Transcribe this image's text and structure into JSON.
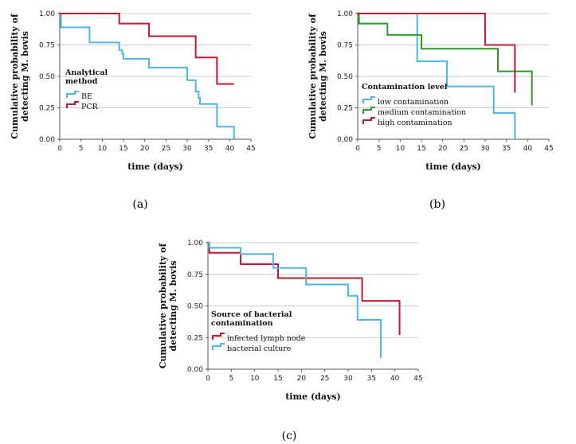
{
  "chart_data": [
    {
      "type": "line",
      "step": true,
      "panel_label": "(a)",
      "xlabel": "time (days)",
      "ylabel_lines": [
        "Cumulative probability of",
        "detecting M. bovis"
      ],
      "xticks": [
        "0",
        "5",
        "10",
        "15",
        "20",
        "25",
        "30",
        "35",
        "40",
        "45"
      ],
      "yticks": [
        "0.00",
        "0.25",
        "0.50",
        "0.75",
        "1.00"
      ],
      "xlim": [
        0,
        45
      ],
      "ylim": [
        0,
        1
      ],
      "legend_title_lines": [
        "Analytical",
        "method"
      ],
      "series": [
        {
          "name": "BE",
          "color": "#4db6e8",
          "x": [
            0,
            0.3,
            7,
            14,
            14.7,
            15,
            21,
            30,
            32,
            32.7,
            33,
            37,
            41
          ],
          "y": [
            1.0,
            0.89,
            0.77,
            0.71,
            0.68,
            0.64,
            0.57,
            0.47,
            0.38,
            0.33,
            0.28,
            0.1,
            0.0
          ]
        },
        {
          "name": "PCR",
          "color": "#c4182f",
          "x": [
            0,
            14,
            21,
            32,
            37,
            41
          ],
          "y": [
            1.0,
            0.92,
            0.82,
            0.65,
            0.44,
            0.44
          ]
        }
      ]
    },
    {
      "type": "line",
      "step": true,
      "panel_label": "(b)",
      "xlabel": "time (days)",
      "ylabel_lines": [
        "Cumulative probability of",
        "detecting M. bovis"
      ],
      "xticks": [
        "0",
        "5",
        "10",
        "15",
        "20",
        "25",
        "30",
        "35",
        "40",
        "45"
      ],
      "yticks": [
        "0.00",
        "0.25",
        "0.50",
        "0.75",
        "1.00"
      ],
      "xlim": [
        0,
        45
      ],
      "ylim": [
        0,
        1
      ],
      "legend_title_lines": [
        "Contamination level"
      ],
      "series": [
        {
          "name": "low contamination",
          "color": "#4db6e8",
          "x": [
            0,
            14,
            21,
            32,
            37
          ],
          "y": [
            1.0,
            0.62,
            0.42,
            0.21,
            0.0
          ]
        },
        {
          "name": "medium contamination",
          "color": "#2a9a2a",
          "x": [
            0,
            0.3,
            7,
            15,
            33,
            41
          ],
          "y": [
            1.0,
            0.92,
            0.83,
            0.72,
            0.54,
            0.27
          ]
        },
        {
          "name": "high contamination",
          "color": "#c4182f",
          "x": [
            0,
            30,
            37
          ],
          "y": [
            1.0,
            0.75,
            0.37
          ]
        }
      ]
    },
    {
      "type": "line",
      "step": true,
      "panel_label": "(c)",
      "xlabel": "time (days)",
      "ylabel_lines": [
        "Cumulative probability of",
        "detecting M. bovis"
      ],
      "xticks": [
        "0",
        "5",
        "10",
        "15",
        "20",
        "25",
        "30",
        "35",
        "40",
        "45"
      ],
      "yticks": [
        "0.00",
        "0.25",
        "0.50",
        "0.75",
        "1.00"
      ],
      "xlim": [
        0,
        45
      ],
      "ylim": [
        0,
        1
      ],
      "legend_title_lines": [
        "Source of bacterial",
        "contamination"
      ],
      "series": [
        {
          "name": "infected lymph node",
          "color": "#c4182f",
          "x": [
            0,
            0.3,
            7,
            15,
            33,
            41
          ],
          "y": [
            1.0,
            0.92,
            0.83,
            0.72,
            0.54,
            0.27
          ]
        },
        {
          "name": "bacterial culture",
          "color": "#4db6e8",
          "x": [
            0,
            0.3,
            7,
            14,
            21,
            30,
            32,
            37
          ],
          "y": [
            1.0,
            0.96,
            0.91,
            0.8,
            0.67,
            0.58,
            0.39,
            0.09
          ]
        }
      ]
    }
  ]
}
